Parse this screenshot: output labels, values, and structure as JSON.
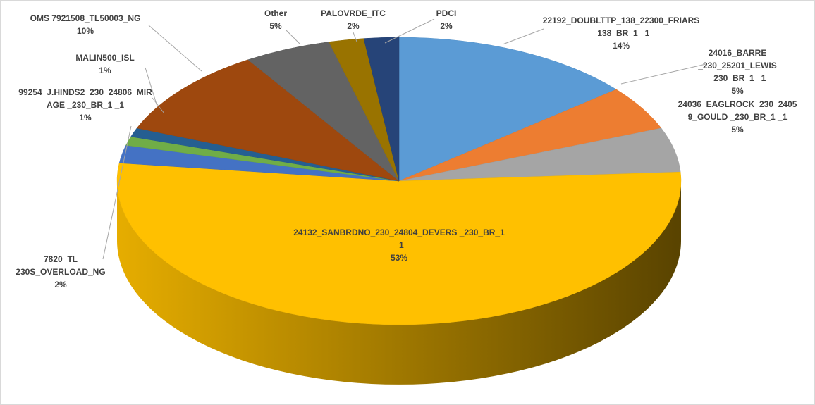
{
  "chart_data": {
    "type": "pie3d",
    "categories": [
      "22192_DOUBLTTP_138_22300_FRIARS _138_BR_1 _1",
      "24016_BARRE _230_25201_LEWIS _230_BR_1 _1",
      "24036_EAGLROCK_230_24059_GOULD _230_BR_1 _1",
      "24132_SANBRDNO_230_24804_DEVERS _230_BR_1 _1",
      "7820_TL 230S_OVERLOAD_NG",
      "99254_J.HINDS2_230_24806_MIRAGE _230_BR_1 _1",
      "MALIN500_ISL",
      "OMS 7921508_TL50003_NG",
      "Other",
      "PALOVRDE_ITC",
      "PDCI"
    ],
    "values": [
      14,
      5,
      5,
      53,
      2,
      1,
      1,
      10,
      5,
      2,
      2
    ],
    "value_labels": [
      "14%",
      "5%",
      "5%",
      "53%",
      "2%",
      "1%",
      "1%",
      "10%",
      "5%",
      "2%",
      "2%"
    ],
    "colors": [
      "#5b9bd5",
      "#ed7d31",
      "#a5a5a5",
      "#ffc000",
      "#4472c4",
      "#70ad47",
      "#255e91",
      "#9e480e",
      "#636363",
      "#997300",
      "#264478"
    ]
  }
}
